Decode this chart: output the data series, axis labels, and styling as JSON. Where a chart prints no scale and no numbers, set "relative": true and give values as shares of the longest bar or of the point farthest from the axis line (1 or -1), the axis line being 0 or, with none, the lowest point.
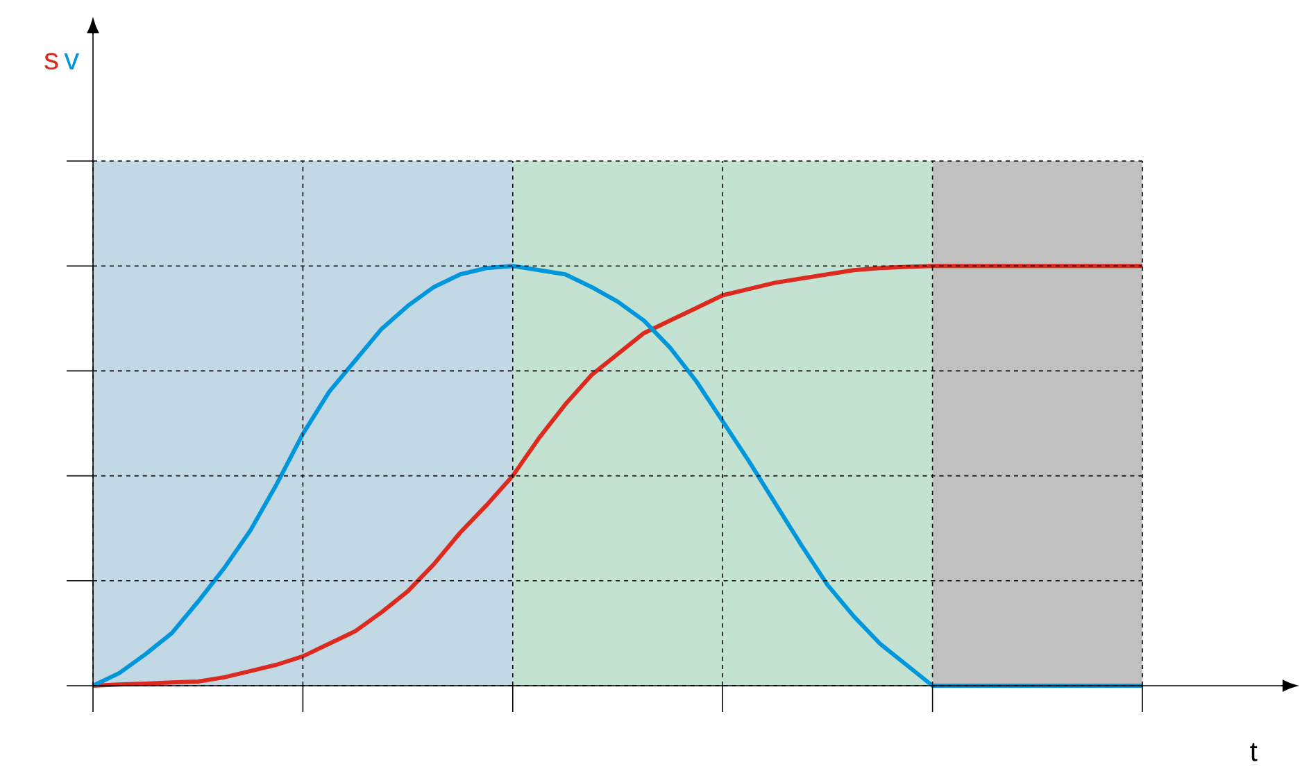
{
  "chart_data": {
    "type": "line",
    "relative": true,
    "xlabel": "t",
    "grid": true,
    "categories": [
      null,
      null,
      null,
      null,
      null,
      null,
      null,
      null,
      null,
      null,
      null,
      null,
      null,
      null,
      null,
      null,
      null,
      null,
      null,
      null,
      null,
      null,
      null,
      null,
      null,
      null,
      null,
      null,
      null,
      null,
      null,
      null,
      null,
      null,
      null,
      null,
      null,
      null,
      null,
      null,
      null
    ],
    "series": [
      {
        "name": "s",
        "color": "#dc2a1e",
        "values": [
          0,
          0.003,
          0.005,
          0.008,
          0.01,
          0.02,
          0.035,
          0.05,
          0.07,
          0.1,
          0.13,
          0.175,
          0.225,
          0.29,
          0.365,
          0.43,
          0.5,
          0.59,
          0.67,
          0.74,
          0.79,
          0.84,
          0.87,
          0.9,
          0.93,
          0.945,
          0.96,
          0.97,
          0.98,
          0.99,
          0.995,
          0.998,
          1,
          1,
          1,
          1,
          1,
          1,
          1,
          1,
          1
        ]
      },
      {
        "name": "v",
        "color": "#0096dc",
        "values": [
          0,
          0.03,
          0.075,
          0.125,
          0.2,
          0.28,
          0.37,
          0.48,
          0.6,
          0.7,
          0.775,
          0.85,
          0.905,
          0.95,
          0.98,
          0.995,
          1,
          0.99,
          0.98,
          0.95,
          0.915,
          0.87,
          0.805,
          0.725,
          0.63,
          0.535,
          0.435,
          0.335,
          0.24,
          0.165,
          0.1,
          0.05,
          0,
          0,
          0,
          0,
          0,
          0,
          0,
          0,
          0
        ]
      }
    ]
  }
}
